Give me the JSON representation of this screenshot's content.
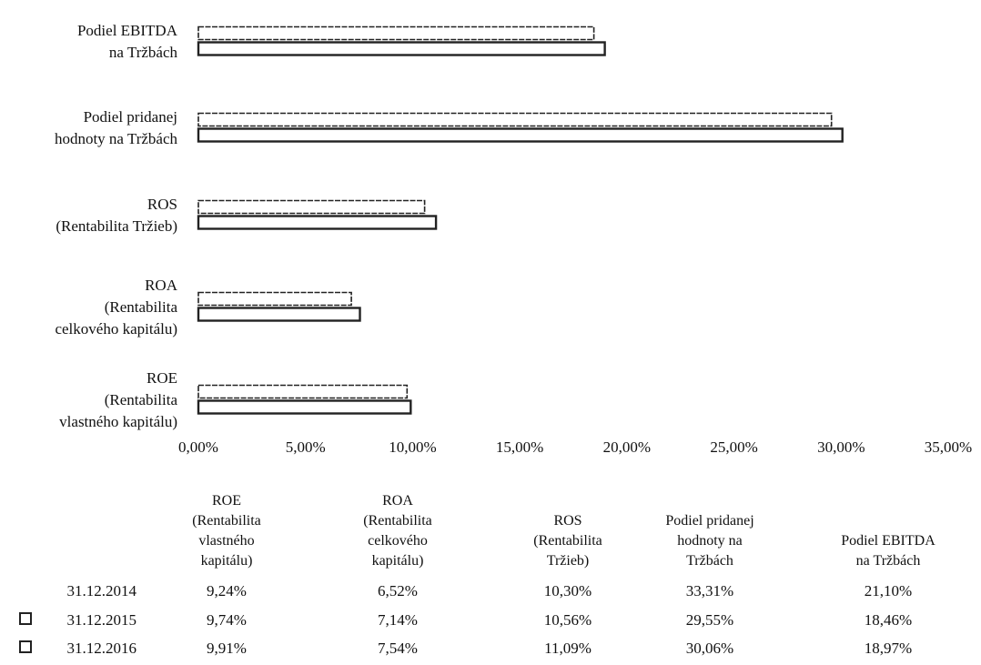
{
  "chart_data": {
    "type": "bar",
    "orientation": "horizontal",
    "categories": [
      "ROE (Rentabilita vlastného kapitálu)",
      "ROA (Rentabilita celkového kapitálu)",
      "ROS (Rentabilita Tržieb)",
      "Podiel pridanej hodnoty na Tržbách",
      "Podiel EBITDA na Tržbách"
    ],
    "category_label_lines": [
      [
        "ROE",
        "(Rentabilita",
        "vlastného kapitálu)"
      ],
      [
        "ROA",
        "(Rentabilita",
        "celkového kapitálu)"
      ],
      [
        "ROS",
        "(Rentabilita Tržieb)"
      ],
      [
        "Podiel pridanej",
        "hodnoty na Tržbách"
      ],
      [
        "Podiel EBITDA",
        "na Tržbách"
      ]
    ],
    "table_header_lines": [
      [
        "ROE",
        "(Rentabilita",
        "vlastného",
        "kapitálu)"
      ],
      [
        "ROA",
        "(Rentabilita",
        "celkového",
        "kapitálu)"
      ],
      [
        "ROS",
        "(Rentabilita",
        "Tržieb)"
      ],
      [
        "Podiel pridanej",
        "hodnoty na",
        "Tržbách"
      ],
      [
        "Podiel EBITDA",
        "na Tržbách"
      ]
    ],
    "series": [
      {
        "name": "31.12.2014",
        "values": [
          9.24,
          6.52,
          10.3,
          33.31,
          21.1
        ],
        "labels": [
          "9,24%",
          "6,52%",
          "10,30%",
          "33,31%",
          "21,10%"
        ]
      },
      {
        "name": "31.12.2015",
        "values": [
          9.74,
          7.14,
          10.56,
          29.55,
          18.46
        ],
        "labels": [
          "9,74%",
          "7,14%",
          "10,56%",
          "29,55%",
          "18,46%"
        ]
      },
      {
        "name": "31.12.2016",
        "values": [
          9.91,
          7.54,
          11.09,
          30.06,
          18.97
        ],
        "labels": [
          "9,91%",
          "7,54%",
          "11,09%",
          "30,06%",
          "18,97%"
        ]
      }
    ],
    "xlim": [
      0,
      35
    ],
    "x_ticks": [
      0,
      5,
      10,
      15,
      20,
      25,
      30,
      35
    ],
    "x_tick_labels": [
      "0,00%",
      "5,00%",
      "10,00%",
      "15,00%",
      "20,00%",
      "25,00%",
      "30,00%",
      "35,00%"
    ],
    "legend": "data-table",
    "grid": false
  }
}
